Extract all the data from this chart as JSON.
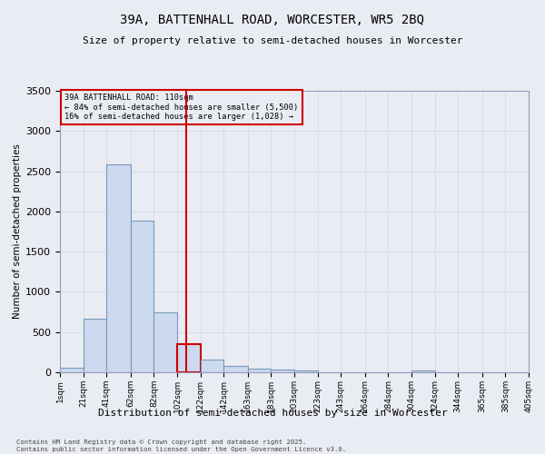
{
  "title1": "39A, BATTENHALL ROAD, WORCESTER, WR5 2BQ",
  "title2": "Size of property relative to semi-detached houses in Worcester",
  "xlabel": "Distribution of semi-detached houses by size in Worcester",
  "ylabel": "Number of semi-detached properties",
  "annotation_title": "39A BATTENHALL ROAD: 110sqm",
  "annotation_line1": "← 84% of semi-detached houses are smaller (5,500)",
  "annotation_line2": "16% of semi-detached houses are larger (1,028) →",
  "footer1": "Contains HM Land Registry data © Crown copyright and database right 2025.",
  "footer2": "Contains public sector information licensed under the Open Government Licence v3.0.",
  "property_size": 110,
  "bin_edges": [
    1,
    21,
    41,
    62,
    82,
    102,
    122,
    142,
    163,
    183,
    203,
    223,
    243,
    264,
    284,
    304,
    324,
    344,
    365,
    385,
    405
  ],
  "bar_heights": [
    60,
    670,
    2580,
    1880,
    750,
    350,
    155,
    75,
    50,
    30,
    20,
    5,
    0,
    0,
    0,
    20,
    0,
    0,
    0,
    0
  ],
  "bar_color": "#ccd9ee",
  "bar_edge_color": "#7799bb",
  "highlight_bar_edge_color": "#cc0000",
  "vline_color": "#cc0000",
  "annotation_box_color": "#cc0000",
  "grid_color": "#d8dce8",
  "bg_color": "#eaecf4",
  "ylim": [
    0,
    3500
  ],
  "yticks": [
    0,
    500,
    1000,
    1500,
    2000,
    2500,
    3000,
    3500
  ]
}
